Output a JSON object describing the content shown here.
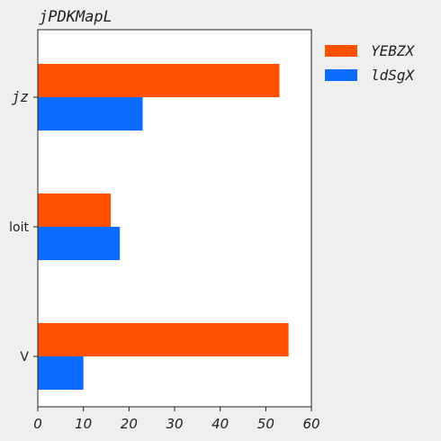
{
  "chart_data": {
    "type": "bar",
    "orientation": "horizontal",
    "title": "jPDKMapL",
    "categories": [
      "jz",
      "loit",
      "V"
    ],
    "series": [
      {
        "name": "YEBZX",
        "values": [
          53,
          16,
          55
        ],
        "color": "#ff5100"
      },
      {
        "name": "ldSgX",
        "values": [
          23,
          18,
          10
        ],
        "color": "#0a6dff"
      }
    ],
    "xlim": [
      0,
      60
    ],
    "xticks": [
      "0",
      "10",
      "20",
      "30",
      "40",
      "50",
      "60"
    ],
    "grid": false,
    "legend": "outside-top-right"
  },
  "style": {
    "background": "#efefef",
    "plot_background": "#ffffff",
    "axis_color": "#222222"
  }
}
